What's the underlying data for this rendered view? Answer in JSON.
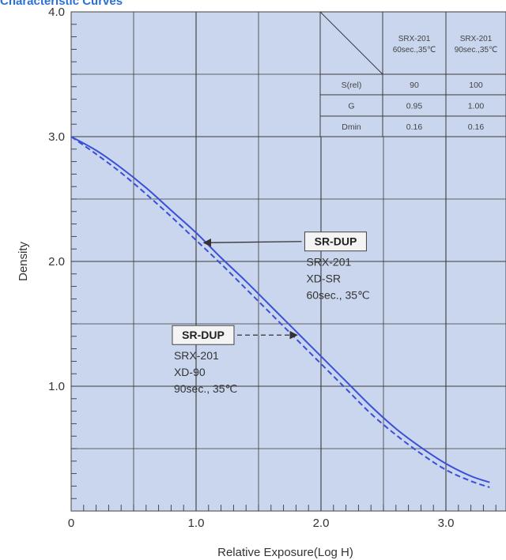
{
  "header_text": "Characteristic Curves",
  "chart_data": {
    "type": "line",
    "title": "",
    "xlabel": "Relative Exposure(Log H)",
    "ylabel": "Density",
    "xlim": [
      0,
      3.4
    ],
    "ylim": [
      0,
      4.0
    ],
    "x_ticks": [
      {
        "value": 0,
        "label": "0"
      },
      {
        "value": 1.0,
        "label": "1.0"
      },
      {
        "value": 2.0,
        "label": "2.0"
      },
      {
        "value": 3.0,
        "label": "3.0"
      }
    ],
    "y_ticks": [
      {
        "value": 1.0,
        "label": "1.0"
      },
      {
        "value": 2.0,
        "label": "2.0"
      },
      {
        "value": 3.0,
        "label": "3.0"
      },
      {
        "value": 4.0,
        "label": "4.0"
      }
    ],
    "grid": true,
    "series": [
      {
        "name": "SR-DUP",
        "style": "solid",
        "color": "#3a4fd8",
        "x": [
          0,
          0.2,
          0.4,
          0.6,
          0.8,
          1.0,
          1.2,
          1.4,
          1.6,
          1.8,
          2.0,
          2.2,
          2.4,
          2.6,
          2.8,
          3.0,
          3.2,
          3.35
        ],
        "y": [
          3.0,
          2.89,
          2.75,
          2.59,
          2.41,
          2.23,
          2.03,
          1.84,
          1.64,
          1.44,
          1.24,
          1.04,
          0.84,
          0.66,
          0.51,
          0.38,
          0.28,
          0.23
        ]
      },
      {
        "name": "SR-DUP",
        "style": "dashed",
        "color": "#3a4fd8",
        "x": [
          0,
          0.2,
          0.4,
          0.6,
          0.8,
          1.0,
          1.2,
          1.4,
          1.6,
          1.8,
          2.0,
          2.2,
          2.4,
          2.6,
          2.8,
          3.0,
          3.2,
          3.35
        ],
        "y": [
          3.0,
          2.86,
          2.71,
          2.54,
          2.36,
          2.17,
          1.98,
          1.78,
          1.58,
          1.38,
          1.18,
          0.98,
          0.78,
          0.61,
          0.46,
          0.33,
          0.24,
          0.19
        ]
      }
    ],
    "annotations": [
      {
        "box": "SR-DUP",
        "lines": [
          "SRX-201",
          "XD-SR",
          "60sec., 35℃"
        ],
        "arrow_style": "solid",
        "arrow_to": [
          1.05,
          2.15
        ],
        "box_at": [
          1.87,
          2.16
        ]
      },
      {
        "box": "SR-DUP",
        "lines": [
          "SRX-201",
          "XD-90",
          "90sec., 35℃"
        ],
        "arrow_style": "dashed",
        "arrow_to": [
          1.82,
          1.41
        ],
        "box_at": [
          0.81,
          1.41
        ]
      }
    ],
    "table": {
      "col_headers": [
        "SRX-201\n60sec.,35℃",
        "SRX-201\n90sec.,35℃"
      ],
      "rows": [
        {
          "label": "S(rel)",
          "values": [
            "90",
            "100"
          ]
        },
        {
          "label": "G",
          "values": [
            "0.95",
            "1.00"
          ]
        },
        {
          "label": "Dmin",
          "values": [
            "0.16",
            "0.16"
          ]
        }
      ]
    }
  }
}
